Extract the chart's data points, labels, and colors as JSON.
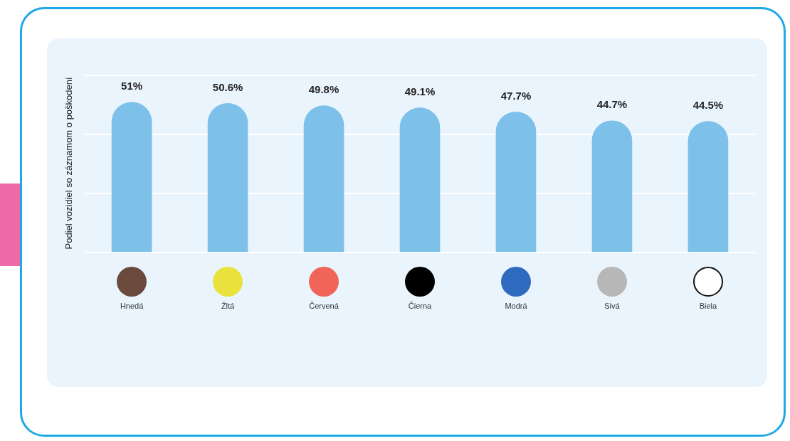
{
  "chart_data": {
    "type": "bar",
    "ylabel": "Podiel vozidiel so záznamom o poškodení",
    "categories": [
      "Hnedá",
      "Žltá",
      "Červená",
      "Čierna",
      "Modrá",
      "Sivá",
      "Biela"
    ],
    "values": [
      51,
      50.6,
      49.8,
      49.1,
      47.7,
      44.7,
      44.5
    ],
    "value_labels": [
      "51%",
      "50.6%",
      "49.8%",
      "49.1%",
      "47.7%",
      "44.7%",
      "44.5%"
    ],
    "color": "#7dc1ea",
    "ylim": [
      0,
      60.6
    ],
    "yticks": [
      {
        "value": 0,
        "label": null
      },
      {
        "value": 20,
        "label": null
      },
      {
        "value": 40,
        "label": null
      },
      {
        "value": 60,
        "label": null
      }
    ],
    "grid": "y",
    "legend": false
  }
}
